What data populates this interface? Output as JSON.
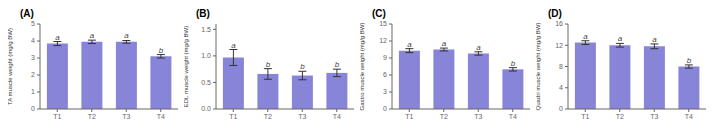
{
  "chart_data": [
    {
      "type": "bar",
      "title": "(A)",
      "ylabel": "TA muscle weight (mg/g BW)",
      "categories": [
        "T1",
        "T2",
        "T3",
        "T4"
      ],
      "values": [
        3.85,
        3.95,
        3.95,
        3.1
      ],
      "errors": [
        0.12,
        0.1,
        0.08,
        0.1
      ],
      "annotations": [
        "a",
        "a",
        "a",
        "b"
      ],
      "ylim": [
        0,
        5
      ],
      "yticks": [
        0,
        1,
        2,
        3,
        4,
        5
      ],
      "color": "#8884d8"
    },
    {
      "type": "bar",
      "title": "(B)",
      "ylabel": "EDL muscle weight (mg/g BW)",
      "categories": [
        "T1",
        "T2",
        "T3",
        "T4"
      ],
      "values": [
        0.97,
        0.66,
        0.63,
        0.68
      ],
      "errors": [
        0.15,
        0.1,
        0.08,
        0.07
      ],
      "annotations": [
        "a",
        "b",
        "b",
        "b"
      ],
      "ylim": [
        0,
        1.6
      ],
      "yticks": [
        {
          "value": 0,
          "label": "0.0"
        },
        0.5,
        {
          "value": 1,
          "label": "1.0"
        },
        1.5
      ],
      "color": "#8884d8"
    },
    {
      "type": "bar",
      "title": "(C)",
      "ylabel": "Gastro muscle weight (mg/g BW)",
      "categories": [
        "T1",
        "T2",
        "T3",
        "T4"
      ],
      "values": [
        10.3,
        10.5,
        9.8,
        7.0
      ],
      "errors": [
        0.35,
        0.25,
        0.3,
        0.3
      ],
      "annotations": [
        "a",
        "a",
        "a",
        "b"
      ],
      "ylim": [
        0,
        15
      ],
      "yticks": [
        0,
        3,
        6,
        9,
        12,
        15
      ],
      "color": "#8884d8"
    },
    {
      "type": "bar",
      "title": "(D)",
      "ylabel": "Quadri muscle weight (mg/g BW)",
      "categories": [
        "T1",
        "T2",
        "T3",
        "T4"
      ],
      "values": [
        12.5,
        12.0,
        11.8,
        8.0
      ],
      "errors": [
        0.35,
        0.35,
        0.45,
        0.3
      ],
      "annotations": [
        "a",
        "a",
        "a",
        "b"
      ],
      "ylim": [
        0,
        16
      ],
      "yticks": [
        0,
        4,
        8,
        12,
        16
      ],
      "color": "#8884d8"
    }
  ]
}
